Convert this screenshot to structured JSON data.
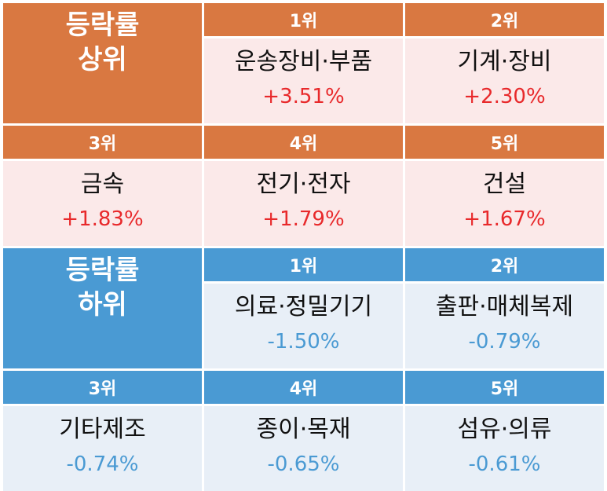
{
  "top": {
    "title_line1": "등락률",
    "title_line2": "상위",
    "items": [
      {
        "rank": "1위",
        "name": "운송장비·부품",
        "change": "+3.51%"
      },
      {
        "rank": "2위",
        "name": "기계·장비",
        "change": "+2.30%"
      },
      {
        "rank": "3위",
        "name": "금속",
        "change": "+1.83%"
      },
      {
        "rank": "4위",
        "name": "전기·전자",
        "change": "+1.79%"
      },
      {
        "rank": "5위",
        "name": "건설",
        "change": "+1.67%"
      }
    ]
  },
  "bottom": {
    "title_line1": "등락률",
    "title_line2": "하위",
    "items": [
      {
        "rank": "1위",
        "name": "의료·정밀기기",
        "change": "-1.50%"
      },
      {
        "rank": "2위",
        "name": "출판·매체복제",
        "change": "-0.79%"
      },
      {
        "rank": "3위",
        "name": "기타제조",
        "change": "-0.74%"
      },
      {
        "rank": "4위",
        "name": "종이·목재",
        "change": "-0.65%"
      },
      {
        "rank": "5위",
        "name": "섬유·의류",
        "change": "-0.61%"
      }
    ]
  },
  "colors": {
    "top_header": "#d97841",
    "top_cell": "#fbe9e9",
    "top_value": "#e8292b",
    "bottom_header": "#4a9ad3",
    "bottom_cell": "#e8eff7",
    "bottom_value": "#4a9ad3"
  }
}
